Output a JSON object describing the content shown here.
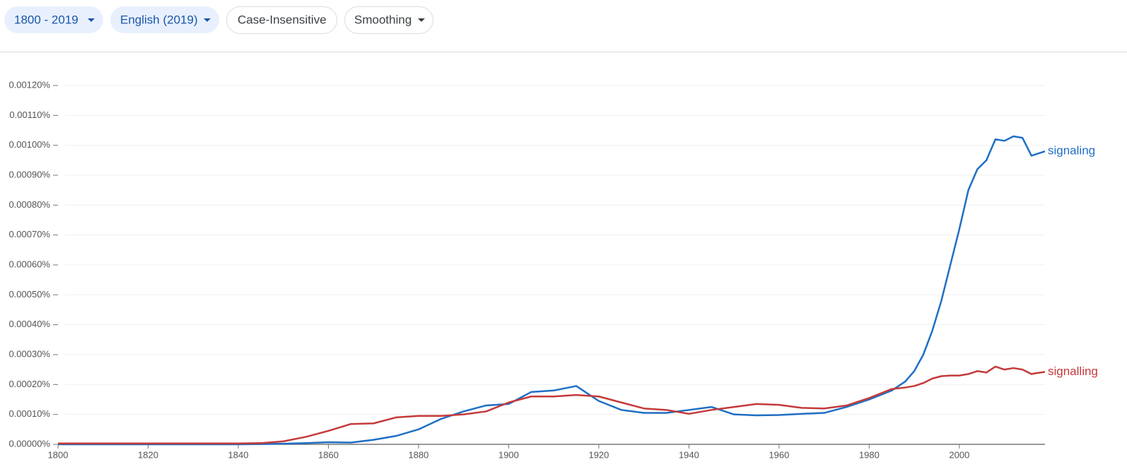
{
  "toolbar": [
    "1800 - 2019",
    "English (2019)",
    "Case-Insensitive",
    "Smoothing"
  ],
  "chart_data": {
    "type": "line",
    "x": [
      1800,
      1805,
      1810,
      1815,
      1820,
      1825,
      1830,
      1835,
      1840,
      1845,
      1850,
      1855,
      1860,
      1865,
      1870,
      1875,
      1880,
      1885,
      1890,
      1895,
      1900,
      1905,
      1910,
      1915,
      1920,
      1925,
      1930,
      1935,
      1940,
      1945,
      1950,
      1955,
      1960,
      1965,
      1970,
      1975,
      1980,
      1985,
      1988,
      1990,
      1992,
      1994,
      1996,
      1998,
      2000,
      2002,
      2004,
      2006,
      2008,
      2010,
      2012,
      2014,
      2016,
      2017,
      2019
    ],
    "series": [
      {
        "name": "signaling",
        "color": "#1f6fc4",
        "values": [
          0,
          0,
          0,
          0,
          0,
          0,
          0,
          0,
          0,
          1e-06,
          2e-06,
          4e-06,
          7e-06,
          6e-06,
          1.5e-05,
          2.8e-05,
          5e-05,
          8.5e-05,
          0.00011,
          0.00013,
          0.000135,
          0.000175,
          0.00018,
          0.000195,
          0.000145,
          0.000115,
          0.000105,
          0.000105,
          0.000115,
          0.000125,
          0.0001,
          9.7e-05,
          9.8e-05,
          0.000102,
          0.000105,
          0.000125,
          0.00015,
          0.00018,
          0.00021,
          0.000245,
          0.0003,
          0.00038,
          0.00048,
          0.0006,
          0.00072,
          0.00085,
          0.00092,
          0.00095,
          0.00102,
          0.001015,
          0.00103,
          0.001025,
          0.000965,
          0.00097,
          0.00098
        ]
      },
      {
        "name": "signalling",
        "color": "#c43a3a",
        "values": [
          3e-06,
          3e-06,
          3e-06,
          3e-06,
          3e-06,
          3e-06,
          3e-06,
          3e-06,
          3e-06,
          4e-06,
          1e-05,
          2.5e-05,
          4.5e-05,
          6.8e-05,
          7e-05,
          9e-05,
          9.5e-05,
          9.5e-05,
          0.0001,
          0.00011,
          0.00014,
          0.00016,
          0.00016,
          0.000165,
          0.00016,
          0.00014,
          0.00012,
          0.000115,
          0.000102,
          0.000115,
          0.000125,
          0.000135,
          0.000132,
          0.000122,
          0.00012,
          0.00013,
          0.000155,
          0.000185,
          0.00019,
          0.000195,
          0.000205,
          0.00022,
          0.000228,
          0.00023,
          0.00023,
          0.000235,
          0.000245,
          0.00024,
          0.00026,
          0.00025,
          0.000255,
          0.00025,
          0.000235,
          0.000238,
          0.000242
        ]
      }
    ],
    "xlim": [
      1800,
      2019
    ],
    "xticks": [
      1800,
      1820,
      1840,
      1860,
      1880,
      1900,
      1920,
      1940,
      1960,
      1980,
      2000
    ],
    "ylim": [
      0,
      0.0012
    ],
    "yticks": [
      {
        "value": 0,
        "label": "0.00000%"
      },
      {
        "value": 0.0001,
        "label": "0.00010%"
      },
      {
        "value": 0.0002,
        "label": "0.00020%"
      },
      {
        "value": 0.0003,
        "label": "0.00030%"
      },
      {
        "value": 0.0004,
        "label": "0.00040%"
      },
      {
        "value": 0.0005,
        "label": "0.00050%"
      },
      {
        "value": 0.0006,
        "label": "0.00060%"
      },
      {
        "value": 0.0007,
        "label": "0.00070%"
      },
      {
        "value": 0.0008,
        "label": "0.00080%"
      },
      {
        "value": 0.0009,
        "label": "0.00090%"
      },
      {
        "value": 0.001,
        "label": "0.00100%"
      },
      {
        "value": 0.0011,
        "label": "0.00110%"
      },
      {
        "value": 0.0012,
        "label": "0.00120%"
      }
    ],
    "grid": true
  }
}
